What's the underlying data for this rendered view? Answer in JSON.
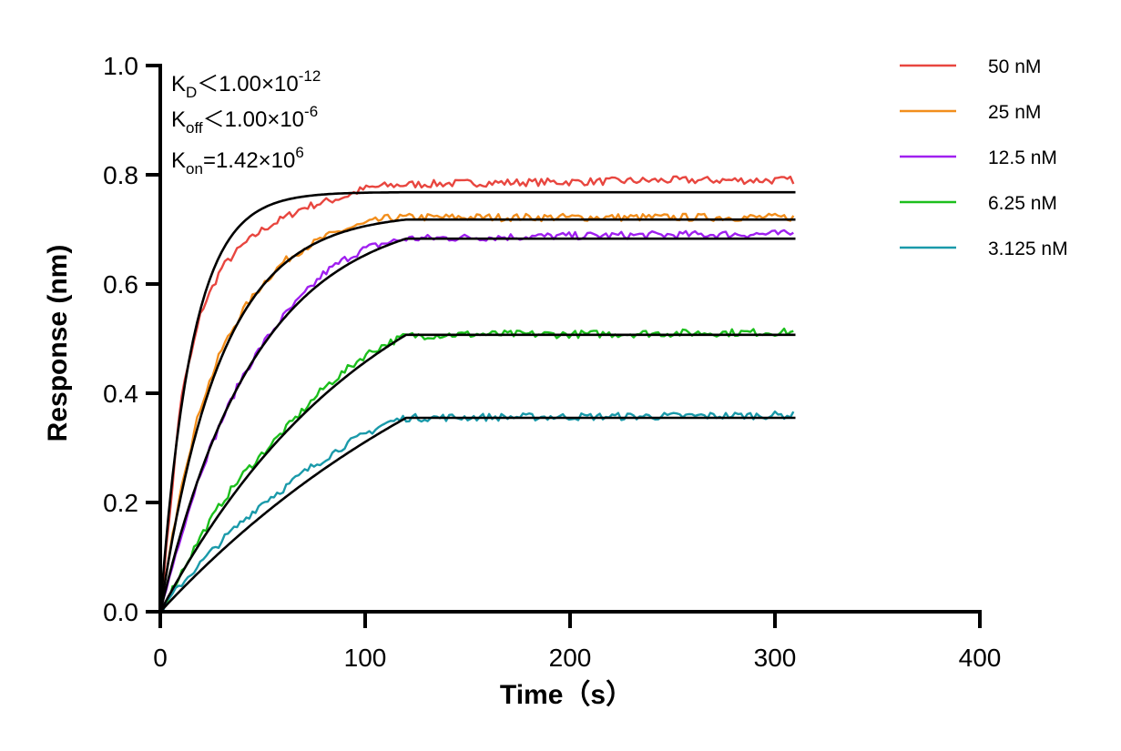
{
  "chart_data": {
    "type": "line",
    "title": "",
    "xlabel": "Time（s）",
    "ylabel": "Response (nm)",
    "xlim": [
      0,
      400
    ],
    "ylim": [
      0,
      1.0
    ],
    "x_ticks": [
      0,
      100,
      200,
      300,
      400
    ],
    "x_tick_labels": [
      "0",
      "100",
      "200",
      "300",
      "400"
    ],
    "y_ticks": [
      0.0,
      0.2,
      0.4,
      0.6,
      0.8,
      1.0
    ],
    "y_tick_labels": [
      "0.0",
      "0.2",
      "0.4",
      "0.6",
      "0.8",
      "1.0"
    ],
    "grid": false,
    "legend_position": "top-right",
    "association_end_time": 120,
    "end_time": 310,
    "annotations": {
      "kd": {
        "base": "K",
        "sub": "D",
        "rest": "＜1.00×10",
        "sup": "-12"
      },
      "koff": {
        "base": "K",
        "sub": "off",
        "rest": "＜1.00×10",
        "sup": "-6"
      },
      "kon": {
        "base": "K",
        "sub": "on",
        "rest": "=1.42×10",
        "sup": "6"
      }
    },
    "series": [
      {
        "name": "50 nM",
        "color": "#e8463f",
        "plateau": 0.768,
        "rate": 0.065,
        "measured_points": [
          [
            0,
            0
          ],
          [
            10,
            0.39
          ],
          [
            20,
            0.55
          ],
          [
            30,
            0.63
          ],
          [
            40,
            0.67
          ],
          [
            50,
            0.7
          ],
          [
            60,
            0.72
          ],
          [
            70,
            0.74
          ],
          [
            80,
            0.75
          ],
          [
            90,
            0.76
          ],
          [
            100,
            0.775
          ],
          [
            110,
            0.78
          ],
          [
            120,
            0.782
          ],
          [
            150,
            0.785
          ],
          [
            200,
            0.787
          ],
          [
            250,
            0.79
          ],
          [
            310,
            0.79
          ]
        ]
      },
      {
        "name": "25 nM",
        "color": "#f28e1c",
        "plateau": 0.718,
        "rate": 0.034,
        "measured_points": [
          [
            0,
            0
          ],
          [
            10,
            0.23
          ],
          [
            20,
            0.38
          ],
          [
            30,
            0.48
          ],
          [
            40,
            0.55
          ],
          [
            50,
            0.6
          ],
          [
            60,
            0.64
          ],
          [
            70,
            0.665
          ],
          [
            80,
            0.685
          ],
          [
            90,
            0.7
          ],
          [
            100,
            0.71
          ],
          [
            110,
            0.72
          ],
          [
            120,
            0.722
          ],
          [
            150,
            0.722
          ],
          [
            200,
            0.722
          ],
          [
            250,
            0.722
          ],
          [
            310,
            0.722
          ]
        ]
      },
      {
        "name": "12.5 nM",
        "color": "#a020f0",
        "plateau": 0.683,
        "rate": 0.0215,
        "measured_points": [
          [
            0,
            0
          ],
          [
            10,
            0.14
          ],
          [
            20,
            0.26
          ],
          [
            30,
            0.35
          ],
          [
            40,
            0.43
          ],
          [
            50,
            0.49
          ],
          [
            60,
            0.54
          ],
          [
            70,
            0.58
          ],
          [
            80,
            0.62
          ],
          [
            90,
            0.645
          ],
          [
            100,
            0.665
          ],
          [
            110,
            0.675
          ],
          [
            120,
            0.683
          ],
          [
            150,
            0.685
          ],
          [
            200,
            0.688
          ],
          [
            250,
            0.69
          ],
          [
            310,
            0.692
          ]
        ]
      },
      {
        "name": "6.25 nM",
        "color": "#1cbf1c",
        "plateau": 0.507,
        "rate": 0.0095,
        "measured_points": [
          [
            0,
            0
          ],
          [
            10,
            0.07
          ],
          [
            20,
            0.14
          ],
          [
            30,
            0.2
          ],
          [
            40,
            0.25
          ],
          [
            50,
            0.29
          ],
          [
            60,
            0.33
          ],
          [
            70,
            0.37
          ],
          [
            80,
            0.41
          ],
          [
            90,
            0.44
          ],
          [
            100,
            0.47
          ],
          [
            110,
            0.49
          ],
          [
            120,
            0.505
          ],
          [
            150,
            0.508
          ],
          [
            200,
            0.508
          ],
          [
            250,
            0.51
          ],
          [
            310,
            0.512
          ]
        ]
      },
      {
        "name": "3.125 nM",
        "color": "#1a9aaa",
        "plateau": 0.355,
        "rate": 0.0055,
        "measured_points": [
          [
            0,
            0
          ],
          [
            10,
            0.05
          ],
          [
            20,
            0.09
          ],
          [
            30,
            0.13
          ],
          [
            40,
            0.165
          ],
          [
            50,
            0.2
          ],
          [
            60,
            0.225
          ],
          [
            70,
            0.255
          ],
          [
            80,
            0.28
          ],
          [
            90,
            0.305
          ],
          [
            100,
            0.325
          ],
          [
            110,
            0.345
          ],
          [
            120,
            0.355
          ],
          [
            150,
            0.356
          ],
          [
            200,
            0.357
          ],
          [
            250,
            0.358
          ],
          [
            310,
            0.36
          ]
        ]
      }
    ],
    "fit_color": "#000000"
  }
}
